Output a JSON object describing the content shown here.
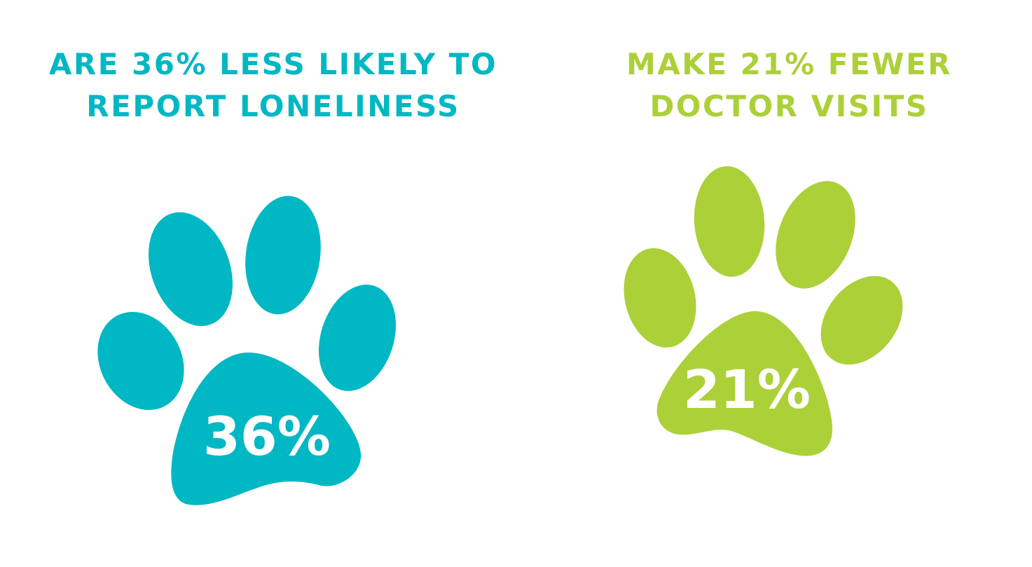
{
  "stats": [
    {
      "heading_lines": [
        "ARE 36% LESS LIKELY TO",
        "REPORT LONELINESS"
      ],
      "percent_label": "36%",
      "value": 36,
      "color": "#00b7c4",
      "icon": "paw-print-icon"
    },
    {
      "heading_lines": [
        "MAKE 21% FEWER",
        "DOCTOR VISITS"
      ],
      "percent_label": "21%",
      "value": 21,
      "color": "#acd038",
      "icon": "paw-print-icon"
    }
  ],
  "text_color": "#ffffff"
}
